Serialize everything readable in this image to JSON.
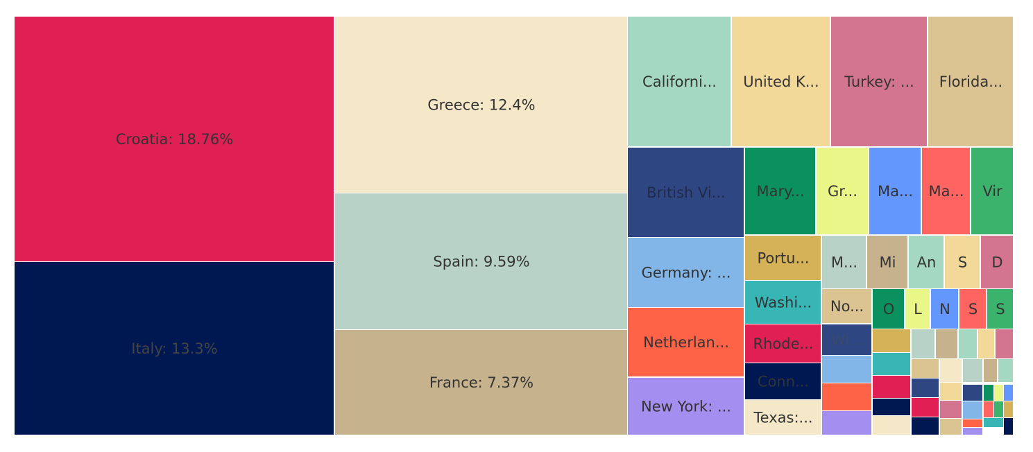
{
  "chart_data": {
    "type": "treemap",
    "title": "",
    "tiles": [
      {
        "label": "Croatia: 18.76%",
        "color": "#E01F54"
      },
      {
        "label": "Italy: 13.3%",
        "color": "#001852"
      },
      {
        "label": "Greece: 12.4%",
        "color": "#F5E8C8"
      },
      {
        "label": "Spain: 9.59%",
        "color": "#B8D2C7"
      },
      {
        "label": "France: 7.37%",
        "color": "#C6B38E"
      },
      {
        "label": "Californi...",
        "color": "#A4D8C2"
      },
      {
        "label": "United K...",
        "color": "#F3D999"
      },
      {
        "label": "Turkey: ...",
        "color": "#D3758F"
      },
      {
        "label": "Florida...",
        "color": "#DCC392"
      },
      {
        "label": "British Vi...",
        "color": "#2E4783"
      },
      {
        "label": "Mary...",
        "color": "#0A915E"
      },
      {
        "label": "Gr...",
        "color": "#E8F787"
      },
      {
        "label": "Ma...",
        "color": "#6497FD"
      },
      {
        "label": "Ma...",
        "color": "#FF6461"
      },
      {
        "label": "Vir",
        "color": "#3BB36D"
      },
      {
        "label": "Germany: ...",
        "color": "#82B6E9"
      },
      {
        "label": "Portu...",
        "color": "#D5B158"
      },
      {
        "label": "M...",
        "color": "#B8D2C7"
      },
      {
        "label": "Mi",
        "color": "#C6B38E"
      },
      {
        "label": "An",
        "color": "#A4D8C2"
      },
      {
        "label": "S",
        "color": "#F3D999"
      },
      {
        "label": "D",
        "color": "#D3758F"
      },
      {
        "label": "Washi...",
        "color": "#38B6B6"
      },
      {
        "label": "No...",
        "color": "#DCC392"
      },
      {
        "label": "O",
        "color": "#0A915E"
      },
      {
        "label": "L",
        "color": "#E8F787"
      },
      {
        "label": "N",
        "color": "#6497FD"
      },
      {
        "label": "S",
        "color": "#FF6461"
      },
      {
        "label": "S",
        "color": "#3BB36D"
      },
      {
        "label": "Netherlan...",
        "color": "#FF6347"
      },
      {
        "label": "Rhode...",
        "color": "#E01F54"
      },
      {
        "label": "Wi...",
        "color": "#2E4783"
      },
      {
        "label": "Conn...",
        "color": "#001852"
      },
      {
        "label": "New York: ...",
        "color": "#A28FF0"
      },
      {
        "label": "Texas:...",
        "color": "#F5E8C8"
      },
      {
        "label": "",
        "color": "#D5B158"
      },
      {
        "label": "",
        "color": "#B8D2C7"
      },
      {
        "label": "",
        "color": "#C6B38E"
      },
      {
        "label": "",
        "color": "#A4D8C2"
      },
      {
        "label": "",
        "color": "#F3D999"
      },
      {
        "label": "",
        "color": "#D3758F"
      },
      {
        "label": "",
        "color": "#82B6E9"
      },
      {
        "label": "",
        "color": "#38B6B6"
      },
      {
        "label": "",
        "color": "#DCC392"
      },
      {
        "label": "",
        "color": "#F5E8C8"
      },
      {
        "label": "",
        "color": "#B8D2C7"
      },
      {
        "label": "",
        "color": "#C6B38E"
      },
      {
        "label": "",
        "color": "#A4D8C2"
      },
      {
        "label": "",
        "color": "#FF6347"
      },
      {
        "label": "",
        "color": "#E01F54"
      },
      {
        "label": "",
        "color": "#2E4783"
      },
      {
        "label": "",
        "color": "#F3D999"
      },
      {
        "label": "",
        "color": "#2E4783"
      },
      {
        "label": "",
        "color": "#0A915E"
      },
      {
        "label": "",
        "color": "#E8F787"
      },
      {
        "label": "",
        "color": "#6497FD"
      },
      {
        "label": "",
        "color": "#A28FF0"
      },
      {
        "label": "",
        "color": "#001852"
      },
      {
        "label": "",
        "color": "#E01F54"
      },
      {
        "label": "",
        "color": "#D3758F"
      },
      {
        "label": "",
        "color": "#82B6E9"
      },
      {
        "label": "",
        "color": "#FF6461"
      },
      {
        "label": "",
        "color": "#3BB36D"
      },
      {
        "label": "",
        "color": "#D5B158"
      },
      {
        "label": "",
        "color": "#F5E8C8"
      },
      {
        "label": "",
        "color": "#001852"
      },
      {
        "label": "",
        "color": "#DCC392"
      },
      {
        "label": "",
        "color": "#FF6347"
      },
      {
        "label": "",
        "color": "#38B6B6"
      },
      {
        "label": "",
        "color": "#A28FF0"
      },
      {
        "label": "",
        "color": "#001852"
      }
    ]
  }
}
